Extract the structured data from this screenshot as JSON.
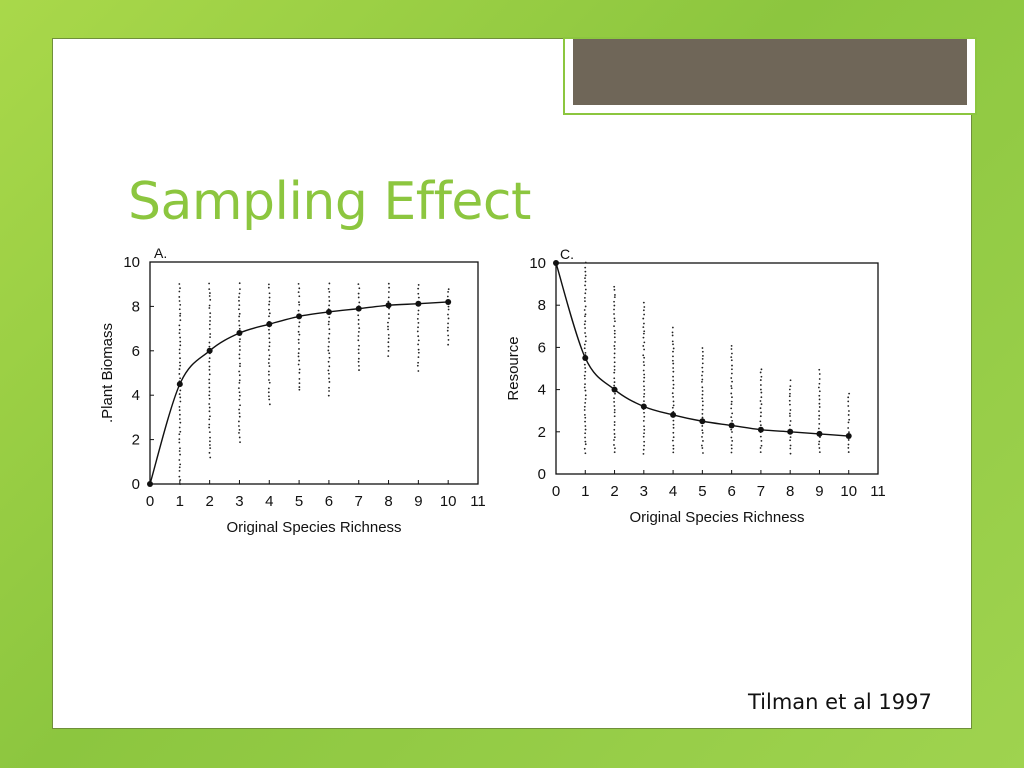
{
  "slide": {
    "title": "Sampling Effect",
    "citation": "Tilman et al 1997",
    "title_color": "#8cc63f",
    "accent_color": "#8cc63f",
    "tab_color": "#6f6658"
  },
  "chart_data": [
    {
      "type": "scatter",
      "panel_label": "A.",
      "xlabel": "Original Species Richness",
      "ylabel": ".Plant Biomass",
      "xlim": [
        0,
        11
      ],
      "ylim": [
        0,
        10
      ],
      "x_ticks": [
        0,
        1,
        2,
        3,
        4,
        5,
        6,
        7,
        8,
        9,
        10,
        11
      ],
      "y_ticks": [
        0,
        2,
        4,
        6,
        8,
        10
      ],
      "grid": false,
      "series": [
        {
          "values_x": [
            0,
            1,
            2,
            3,
            4,
            5,
            6,
            7,
            8,
            9,
            10
          ],
          "values_y": [
            0,
            4.5,
            6.0,
            6.8,
            7.2,
            7.55,
            7.75,
            7.9,
            8.05,
            8.12,
            8.2
          ]
        }
      ],
      "scatter_ranges": [
        {
          "x": 1,
          "min": 0.0,
          "max": 9.0
        },
        {
          "x": 2,
          "min": 1.2,
          "max": 9.0
        },
        {
          "x": 3,
          "min": 1.9,
          "max": 9.0
        },
        {
          "x": 4,
          "min": 3.6,
          "max": 9.0
        },
        {
          "x": 5,
          "min": 4.2,
          "max": 9.0
        },
        {
          "x": 6,
          "min": 4.0,
          "max": 9.0
        },
        {
          "x": 7,
          "min": 5.1,
          "max": 9.0
        },
        {
          "x": 8,
          "min": 5.8,
          "max": 9.0
        },
        {
          "x": 9,
          "min": 5.1,
          "max": 9.0
        },
        {
          "x": 10,
          "min": 6.3,
          "max": 8.8
        }
      ]
    },
    {
      "type": "scatter",
      "panel_label": "C.",
      "xlabel": "Original Species Richness",
      "ylabel": "Resource",
      "xlim": [
        0,
        11
      ],
      "ylim": [
        0,
        10
      ],
      "x_ticks": [
        0,
        1,
        2,
        3,
        4,
        5,
        6,
        7,
        8,
        9,
        10,
        11
      ],
      "y_ticks": [
        0,
        2,
        4,
        6,
        8,
        10
      ],
      "grid": false,
      "series": [
        {
          "values_x": [
            0,
            1,
            2,
            3,
            4,
            5,
            6,
            7,
            8,
            9,
            10
          ],
          "values_y": [
            10,
            5.5,
            4.0,
            3.2,
            2.8,
            2.5,
            2.3,
            2.1,
            2.0,
            1.9,
            1.8
          ]
        }
      ],
      "scatter_ranges": [
        {
          "x": 1,
          "min": 1.0,
          "max": 10.0
        },
        {
          "x": 2,
          "min": 1.0,
          "max": 8.9
        },
        {
          "x": 3,
          "min": 1.0,
          "max": 8.1
        },
        {
          "x": 4,
          "min": 1.0,
          "max": 6.9
        },
        {
          "x": 5,
          "min": 1.0,
          "max": 6.0
        },
        {
          "x": 6,
          "min": 1.0,
          "max": 6.1
        },
        {
          "x": 7,
          "min": 1.0,
          "max": 5.0
        },
        {
          "x": 8,
          "min": 1.0,
          "max": 4.4
        },
        {
          "x": 9,
          "min": 1.0,
          "max": 4.9
        },
        {
          "x": 10,
          "min": 1.0,
          "max": 3.8
        }
      ]
    }
  ]
}
